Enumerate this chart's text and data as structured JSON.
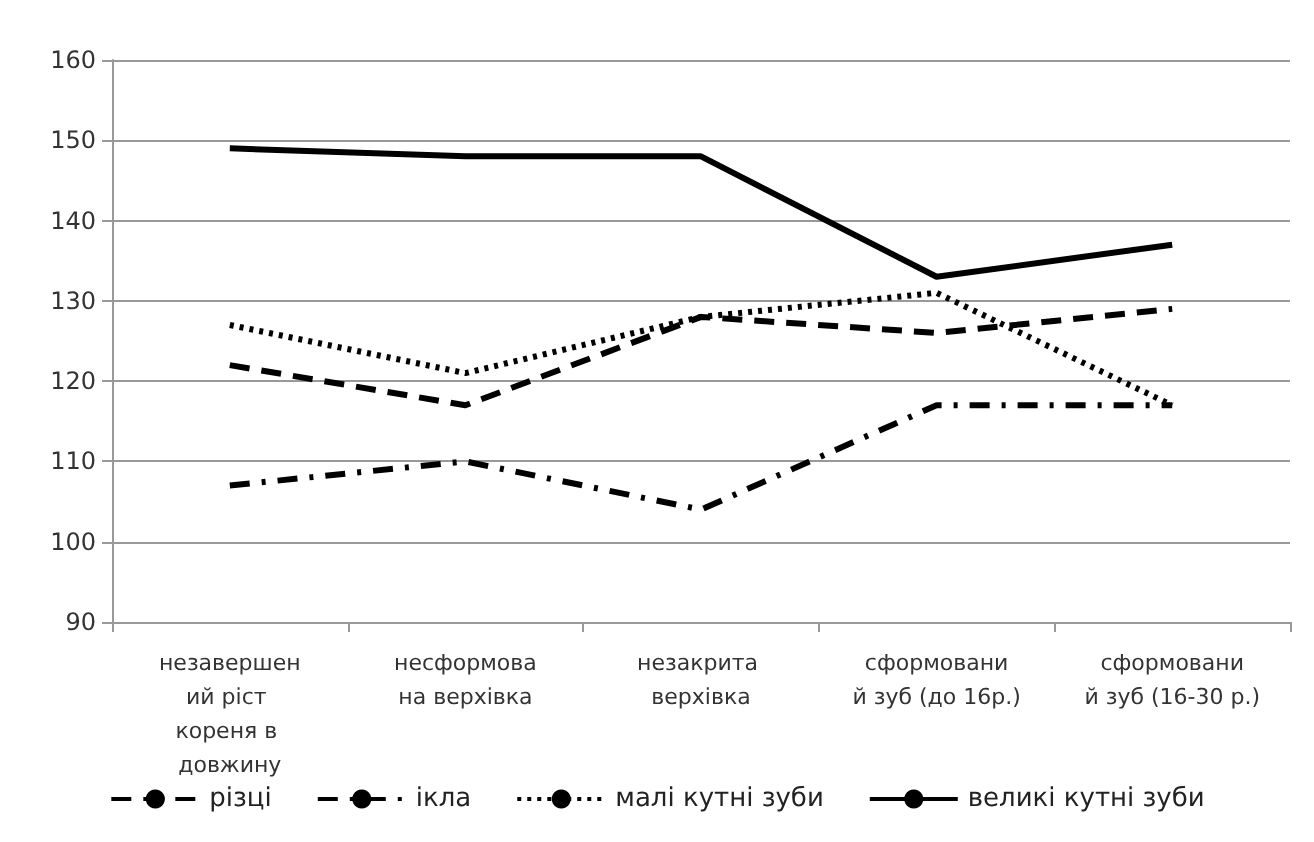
{
  "chart_data": {
    "type": "line",
    "categories": [
      "незавершений ріст кореня в довжину",
      "несформована верхівка",
      "незакрита верхівка",
      "сформований зуб (до 16р.)",
      "сформований зуб (16-30 р.)"
    ],
    "series": [
      {
        "name": "різці",
        "color": "#000000",
        "line_style": "dashed",
        "values": [
          122,
          117,
          128,
          126,
          129
        ]
      },
      {
        "name": "ікла",
        "color": "#000000",
        "line_style": "dashdot",
        "values": [
          107,
          110,
          104,
          117,
          117
        ]
      },
      {
        "name": "малі кутні зуби",
        "color": "#000000",
        "line_style": "dotted",
        "values": [
          127,
          121,
          128,
          131,
          117
        ]
      },
      {
        "name": "великі кутні зуби",
        "color": "#000000",
        "line_style": "solid",
        "values": [
          149,
          148,
          148,
          133,
          137
        ]
      }
    ],
    "ylim": [
      90,
      160
    ],
    "yticks": [
      90,
      100,
      110,
      120,
      130,
      140,
      150,
      160
    ],
    "grid": "y",
    "legend": "bottom",
    "marker": "none"
  }
}
